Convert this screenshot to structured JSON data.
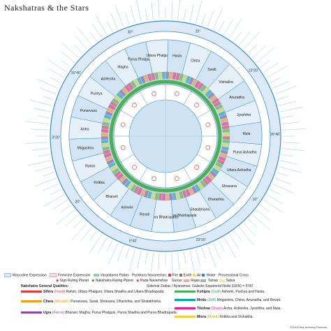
{
  "title": "Nakshatras & the Stars",
  "colors": {
    "ring_blue": "#3c8fd0",
    "ring_pale": "#dbeaf6",
    "ring_mid": "#b9d7ee",
    "center": "#cfe3f3",
    "green": "#4caf50",
    "red": "#e53935",
    "orange": "#f39c12",
    "yellow": "#f4d03f",
    "teal": "#00a99d",
    "pink": "#e91e8c",
    "purple": "#8e44ad",
    "star_line": "#7fb2dc"
  },
  "nakshatras": [
    {
      "name": "Ashwini"
    },
    {
      "name": "Bharani"
    },
    {
      "name": "Krittika"
    },
    {
      "name": "Rohini"
    },
    {
      "name": "Mrigashira"
    },
    {
      "name": "Ardra"
    },
    {
      "name": "Punarvasu"
    },
    {
      "name": "Pushya"
    },
    {
      "name": "Ashlesha"
    },
    {
      "name": "Magha"
    },
    {
      "name": "Purva Phalguni"
    },
    {
      "name": "Uttara Phalguni"
    },
    {
      "name": "Hasta"
    },
    {
      "name": "Chitra"
    },
    {
      "name": "Swati"
    },
    {
      "name": "Vishakha"
    },
    {
      "name": "Anuradha"
    },
    {
      "name": "Jyeshtha"
    },
    {
      "name": "Mula"
    },
    {
      "name": "Purva Ashadha"
    },
    {
      "name": "Uttara Ashadha"
    },
    {
      "name": "Shravana"
    },
    {
      "name": "Dhanishta"
    },
    {
      "name": "Shatabhisha"
    },
    {
      "name": "Purva Bhadrapada"
    },
    {
      "name": "Uttara Bhadrapada"
    },
    {
      "name": "Revati"
    }
  ],
  "degree_labels": [
    "20°",
    "13°20'",
    "26°40'",
    "10°",
    "23°20'",
    "6°40'",
    "20°",
    "3°20'",
    "16°40'",
    "30°"
  ],
  "legend": {
    "masculine": "Masculine Expression",
    "feminine": "Feminine Expression",
    "vargottama": "Vargottama Padas",
    "pushkara": "Pushkara Navamshas:",
    "elements": [
      "Fire",
      "Earth",
      "Air",
      "Water"
    ],
    "processional": "Processional Cross",
    "sign_ruler": "Sign Ruling Planet",
    "nak_ruler": "Nakshatra Ruling Planet",
    "pada_navamsa": "Pada Navamshas",
    "gunas_label": "Gunas:",
    "gunas": [
      "Rajas",
      "Tamas",
      "Satva"
    ],
    "qualities_title": "Nakshatra General Qualities:",
    "sidereal": "Sidereal Zodiac / Ayanamsa: Galactic Equatorial Node (GEN) = 5°00'",
    "qualities": [
      {
        "name": "Sthira",
        "tag": "(Fixed)",
        "text": "Rohini, Uttara Phalguni, Uttara Shadha and Uttara Bhadrapada."
      },
      {
        "name": "Chara",
        "tag": "(Movable)",
        "text": "Punarvasu, Swati, Shravana, Dhanishta, and Shatabhisha."
      },
      {
        "name": "Ugra",
        "tag": "(Fierce)",
        "text": "Bharani, Magha, Purva Phalguni, Purva Shadha and Purva Bhadrapada."
      },
      {
        "name": "Kshipra",
        "tag": "(Swift)",
        "text": "Ashwini, Pushya and Hasta."
      },
      {
        "name": "Mridu",
        "tag": "(Soft)",
        "text": "Mrigashira, Chitra, Anuradha, and Revati."
      },
      {
        "name": "Tikshna",
        "tag": "(Sharp)",
        "text": "Ardra, Ashlesha, Jyeshtha, and Mula."
      },
      {
        "name": "Misra",
        "tag": "(Mixed)",
        "text": "Krittika and Vishakha."
      }
    ],
    "copyright": "©2018 Nick Anthony Fiorenza"
  }
}
